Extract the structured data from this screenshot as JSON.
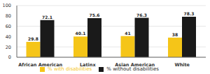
{
  "chart_data": {
    "type": "bar",
    "categories": [
      "African American",
      "Latinx",
      "Asian American",
      "White"
    ],
    "series": [
      {
        "name": "% with disabilities",
        "color": "#F5C518",
        "values": [
          29.8,
          40.1,
          41,
          38
        ]
      },
      {
        "name": "% without disabilities",
        "color": "#1a1a1a",
        "values": [
          72.1,
          75.6,
          76.3,
          78.3
        ]
      }
    ],
    "ylim": [
      0,
      100
    ],
    "yticks": [
      0,
      20,
      40,
      60,
      80,
      100
    ],
    "grid": true,
    "data_labels": true,
    "legend": "bottom"
  }
}
